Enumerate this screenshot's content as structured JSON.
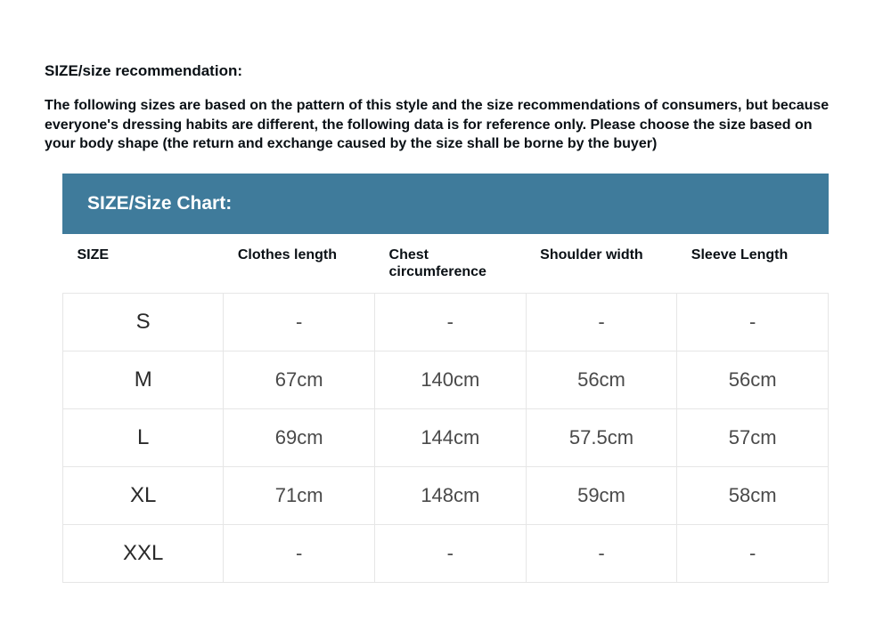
{
  "heading": "SIZE/size recommendation:",
  "description": "The following sizes are based on the pattern of this style and the size recommendations of consumers, but because everyone's dressing habits are different, the following data is for reference only. Please choose the size based on your body shape (the return and exchange caused by the size shall be borne by the buyer)",
  "chart": {
    "title": "SIZE/Size Chart:",
    "title_bg": "#3f7b9b",
    "title_color": "#ffffff",
    "border_color": "#e6e6e6",
    "columns": [
      "SIZE",
      "Clothes length",
      "Chest circumference",
      "Shoulder width",
      "Sleeve Length"
    ],
    "rows": [
      {
        "size": "S",
        "clothes_length": "-",
        "chest": "-",
        "shoulder": "-",
        "sleeve": "-"
      },
      {
        "size": "M",
        "clothes_length": "67cm",
        "chest": "140cm",
        "shoulder": "56cm",
        "sleeve": "56cm"
      },
      {
        "size": "L",
        "clothes_length": "69cm",
        "chest": "144cm",
        "shoulder": "57.5cm",
        "sleeve": "57cm"
      },
      {
        "size": "XL",
        "clothes_length": "71cm",
        "chest": "148cm",
        "shoulder": "59cm",
        "sleeve": "58cm"
      },
      {
        "size": "XXL",
        "clothes_length": "-",
        "chest": "-",
        "shoulder": "-",
        "sleeve": "-"
      }
    ]
  }
}
